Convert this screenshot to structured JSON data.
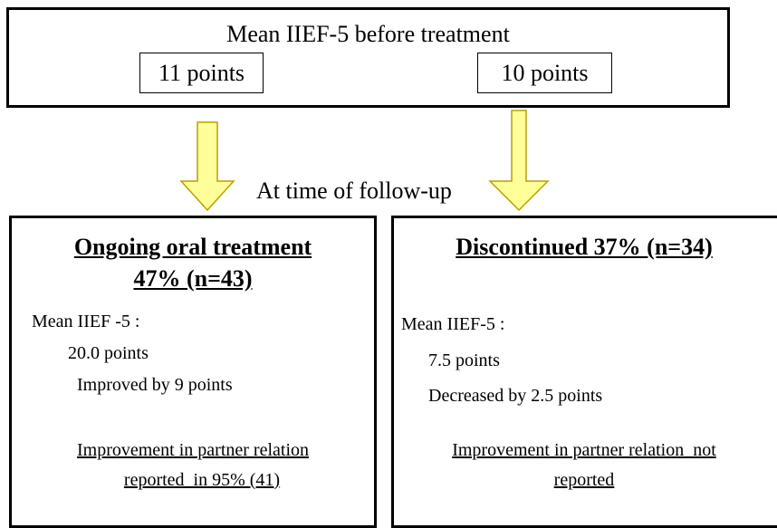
{
  "header": {
    "title": "Mean IIEF-5 before treatment",
    "boxes": [
      "11 points",
      "10 points"
    ]
  },
  "arrow_label": "At time of follow-up",
  "panels": [
    {
      "title_lines": [
        "Ongoing oral treatment",
        "47% (n=43)"
      ],
      "lines": [
        "Mean IIEF -5 :",
        "20.0 points",
        "Improved by 9 points"
      ],
      "note_lines": [
        "Improvement in partner relation",
        "reported  in 95% (41)"
      ]
    },
    {
      "title_lines": [
        "Discontinued 37% (n=34)"
      ],
      "lines": [
        "Mean IIEF-5 :",
        "7.5 points",
        "Decreased by 2.5 points"
      ],
      "note_lines": [
        "Improvement in partner relation  not",
        "reported"
      ]
    }
  ]
}
